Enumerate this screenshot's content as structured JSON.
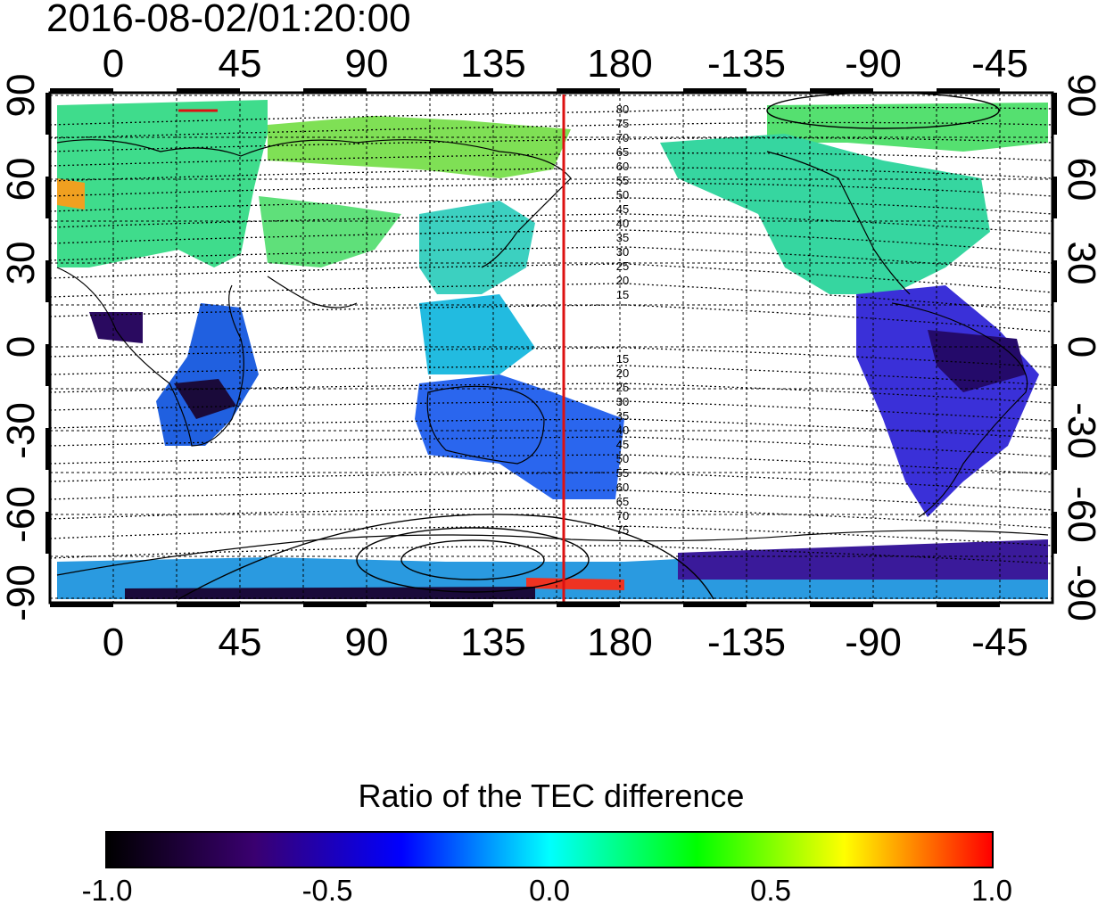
{
  "title": "2016-08-02/01:20:00",
  "lon_ticks": [
    "0",
    "45",
    "90",
    "135",
    "180",
    "-135",
    "-90",
    "-45"
  ],
  "lat_ticks": [
    "90",
    "60",
    "30",
    "0",
    "-30",
    "-60",
    "-90"
  ],
  "contour_labels_north": [
    "80",
    "75",
    "70",
    "65",
    "60",
    "55",
    "50",
    "45",
    "40",
    "35",
    "30",
    "25",
    "20",
    "15"
  ],
  "contour_labels_south": [
    "15",
    "20",
    "25",
    "30",
    "35",
    "40",
    "45",
    "50",
    "55",
    "60",
    "65",
    "70",
    "75"
  ],
  "terminator_longitude": 160,
  "colorbar": {
    "label": "Ratio of the TEC difference",
    "ticks": [
      "-1.0",
      "-0.5",
      "0.0",
      "0.5",
      "1.0"
    ],
    "range": [
      -1.0,
      1.0
    ],
    "colors": [
      "#000000",
      "#3a0070",
      "#0000ff",
      "#00ffff",
      "#00ff00",
      "#ffff00",
      "#ff0000"
    ]
  },
  "colors": {
    "terminator": "#dd1111",
    "data_green": "#44ee44",
    "data_cyan": "#22ccee",
    "data_blue": "#2244ee",
    "data_purple": "#3a0a90"
  }
}
